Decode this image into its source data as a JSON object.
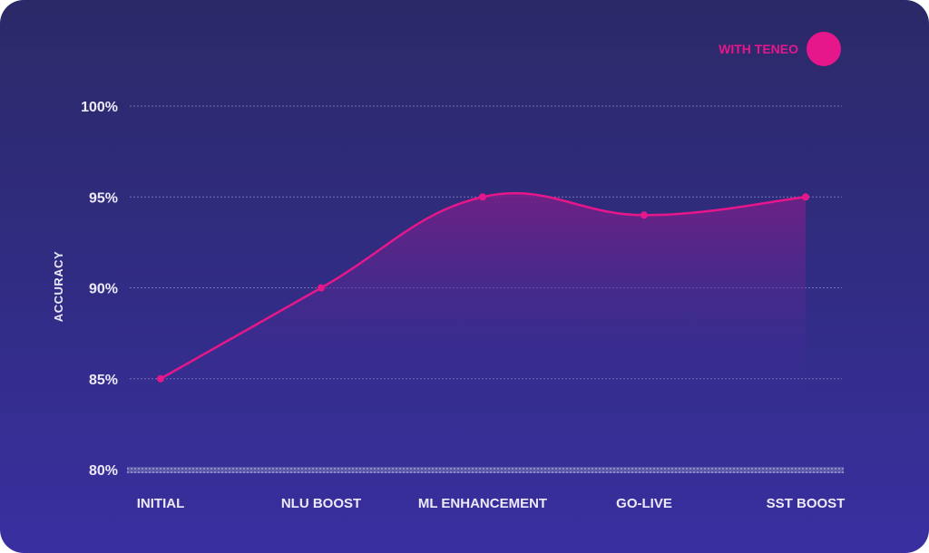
{
  "chart_data": {
    "type": "area",
    "categories": [
      "INITIAL",
      "NLU BOOST",
      "ML ENHANCEMENT",
      "GO-LIVE",
      "SST BOOST"
    ],
    "series": [
      {
        "name": "WITH TENEO",
        "values": [
          85,
          90,
          95,
          94,
          95
        ],
        "color": "#e5178a"
      }
    ],
    "ylabel": "ACCURACY",
    "ylim": [
      80,
      100
    ],
    "yticks": [
      80,
      85,
      90,
      95,
      100
    ],
    "ytick_labels": [
      "80%",
      "85%",
      "90%",
      "95%",
      "100%"
    ],
    "grid": true,
    "legend_position": "top-right"
  }
}
